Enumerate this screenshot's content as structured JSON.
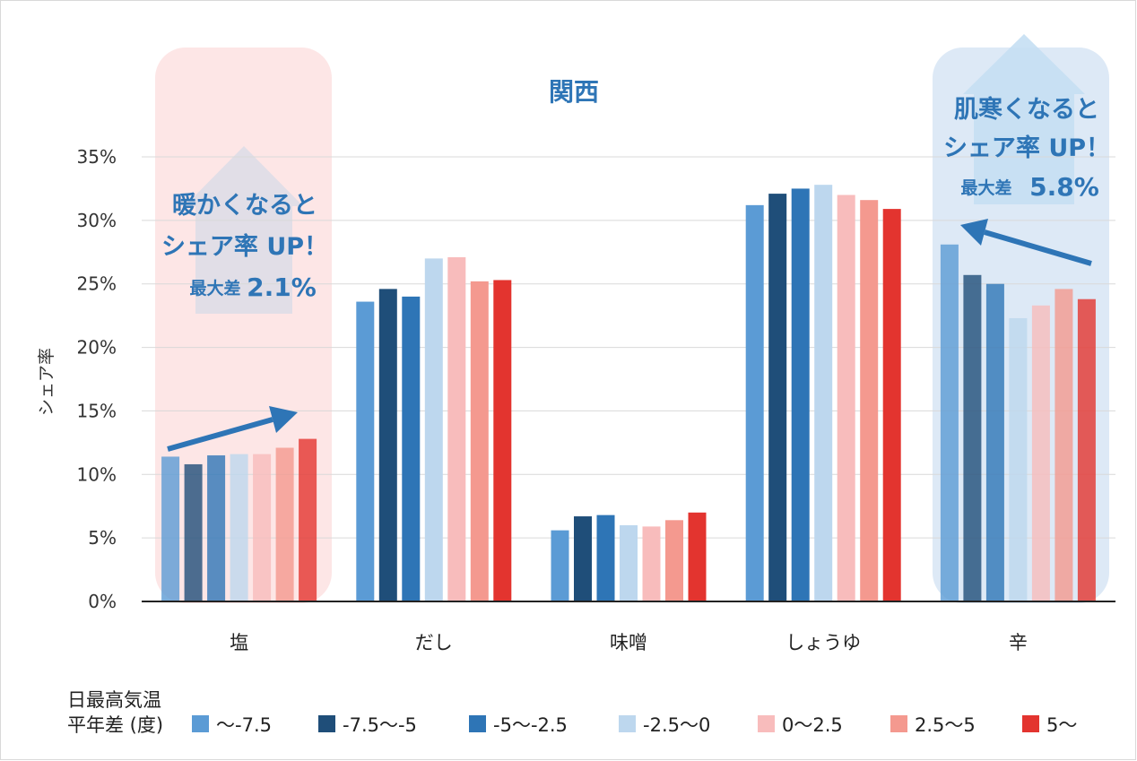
{
  "chart_data": {
    "type": "bar",
    "title": "関西",
    "ylabel": "シェア率",
    "ylim": [
      0,
      35
    ],
    "yticks": [
      "0%",
      "5%",
      "10%",
      "15%",
      "20%",
      "25%",
      "30%",
      "35%"
    ],
    "categories": [
      "塩",
      "だし",
      "味噌",
      "しょうゆ",
      "辛"
    ],
    "legend_title_line1": "日最高気温",
    "legend_title_line2": "平年差 (度)",
    "legend_position": "bottom",
    "series": [
      {
        "name": "〜-7.5",
        "color": "#5b9bd5",
        "values": [
          11.4,
          23.6,
          5.6,
          31.2,
          28.1
        ]
      },
      {
        "name": "-7.5〜-5",
        "color": "#1f4e79",
        "values": [
          10.8,
          24.6,
          6.7,
          32.1,
          25.7
        ]
      },
      {
        "name": "-5〜-2.5",
        "color": "#2e75b6",
        "values": [
          11.5,
          24.0,
          6.8,
          32.5,
          25.0
        ]
      },
      {
        "name": "-2.5〜0",
        "color": "#bdd7ee",
        "values": [
          11.6,
          27.0,
          6.0,
          32.8,
          22.3
        ]
      },
      {
        "name": "0〜2.5",
        "color": "#f8bcbc",
        "values": [
          11.6,
          27.1,
          5.9,
          32.0,
          23.3
        ]
      },
      {
        "name": "2.5〜5",
        "color": "#f4998f",
        "values": [
          12.1,
          25.2,
          6.4,
          31.6,
          24.6
        ]
      },
      {
        "name": "5〜",
        "color": "#e3342f",
        "values": [
          12.8,
          25.3,
          7.0,
          30.9,
          23.8
        ]
      }
    ],
    "annotations": {
      "left_line1": "暖かくなると",
      "left_line2": "シェア率 UP！",
      "left_line3_prefix": "最大差",
      "left_line3_value": "2.1%",
      "right_line1": "肌寒くなると",
      "right_line2": "シェア率 UP！",
      "right_line3_prefix": "最大差",
      "right_line3_value": "5.8%"
    },
    "colors": {
      "accent": "#2e75b6",
      "title": "#2e75b6",
      "left_panel": "#fde6e6",
      "right_panel": "#dde9f6"
    }
  }
}
